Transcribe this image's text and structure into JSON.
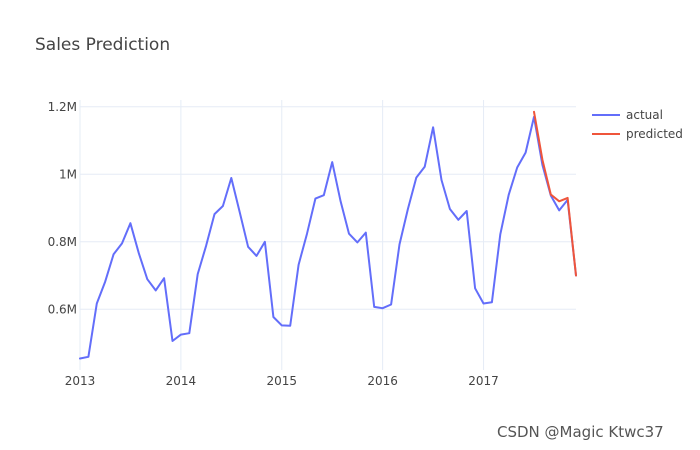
{
  "chart_data": {
    "type": "line",
    "title": "Sales Prediction",
    "xlabel": "",
    "ylabel": "",
    "x_range": [
      "2013-01",
      "2017-12"
    ],
    "ylim": [
      420000,
      1220000
    ],
    "x_ticks": [
      "2013",
      "2014",
      "2015",
      "2016",
      "2017"
    ],
    "y_ticks": [
      {
        "value": 600000,
        "label": "0.6M"
      },
      {
        "value": 800000,
        "label": "0.8M"
      },
      {
        "value": 1000000,
        "label": "1M"
      },
      {
        "value": 1200000,
        "label": "1.2M"
      }
    ],
    "grid": true,
    "legend_position": "top-right",
    "series": [
      {
        "name": "actual",
        "color": "#636efa",
        "x": [
          "2013-01",
          "2013-02",
          "2013-03",
          "2013-04",
          "2013-05",
          "2013-06",
          "2013-07",
          "2013-08",
          "2013-09",
          "2013-10",
          "2013-11",
          "2013-12",
          "2014-01",
          "2014-02",
          "2014-03",
          "2014-04",
          "2014-05",
          "2014-06",
          "2014-07",
          "2014-08",
          "2014-09",
          "2014-10",
          "2014-11",
          "2014-12",
          "2015-01",
          "2015-02",
          "2015-03",
          "2015-04",
          "2015-05",
          "2015-06",
          "2015-07",
          "2015-08",
          "2015-09",
          "2015-10",
          "2015-11",
          "2015-12",
          "2016-01",
          "2016-02",
          "2016-03",
          "2016-04",
          "2016-05",
          "2016-06",
          "2016-07",
          "2016-08",
          "2016-09",
          "2016-10",
          "2016-11",
          "2016-12",
          "2017-01",
          "2017-02",
          "2017-03",
          "2017-04",
          "2017-05",
          "2017-06",
          "2017-07",
          "2017-08",
          "2017-09",
          "2017-10",
          "2017-11",
          "2017-12"
        ],
        "values": [
          454000,
          459000,
          617000,
          682000,
          763000,
          795000,
          855000,
          766000,
          689000,
          656000,
          692000,
          506000,
          525000,
          529000,
          704000,
          788000,
          882000,
          906000,
          989000,
          888000,
          785000,
          758000,
          800000,
          577000,
          552000,
          551000,
          732000,
          824000,
          928000,
          938000,
          1036000,
          920000,
          824000,
          798000,
          827000,
          607000,
          603000,
          614000,
          792000,
          897000,
          990000,
          1022000,
          1139000,
          983000,
          897000,
          865000,
          891000,
          662000,
          617000,
          621000,
          822000,
          939000,
          1020000,
          1064000,
          1170000,
          1028000,
          937000,
          893000,
          924000,
          700000
        ]
      },
      {
        "name": "predicted",
        "color": "#ef553b",
        "x": [
          "2017-07",
          "2017-08",
          "2017-09",
          "2017-10",
          "2017-11",
          "2017-12"
        ],
        "values": [
          1185000,
          1043000,
          940000,
          920000,
          930000,
          700000
        ]
      }
    ]
  },
  "watermark": "CSDN @Magic Ktwc37"
}
